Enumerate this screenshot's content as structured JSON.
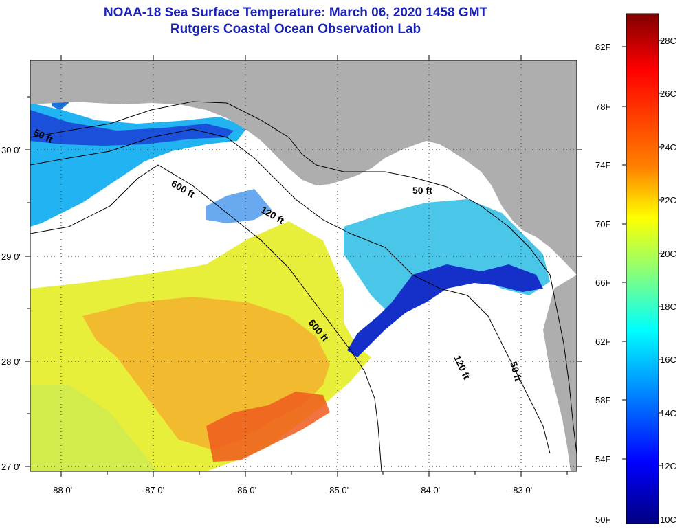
{
  "title": "NOAA-18 Sea Surface Temperature:  March 06, 2020 1458 GMT",
  "subtitle": "Rutgers Coastal Ocean Observation Lab",
  "map": {
    "lon_labels": [
      "-88 0'",
      "-87 0'",
      "-86 0'",
      "-85 0'",
      "-84 0'",
      "-83 0'"
    ],
    "lat_labels": [
      "30 0'",
      "29 0'",
      "28 0'",
      "27 0'"
    ],
    "contour_labels": {
      "c50_west": "50 ft",
      "c600_north": "600 ft",
      "c120_north": "120 ft",
      "c50_east": "50 ft",
      "c600_south": "600 ft",
      "c120_south": "120 ft",
      "c50_south": "50 ft"
    },
    "land_color": "#aeaeae",
    "cloud_color": "#ffffff"
  },
  "colorbar": {
    "fahrenheit_labels": [
      "82F",
      "78F",
      "74F",
      "70F",
      "66F",
      "62F",
      "58F",
      "54F",
      "50F"
    ],
    "celsius_labels": [
      "28C",
      "26C",
      "24C",
      "22C",
      "20C",
      "18C",
      "16C",
      "14C",
      "12C",
      "10C"
    ],
    "colors_top_to_bottom": [
      "#800000",
      "#ff0000",
      "#ff8000",
      "#ffff00",
      "#80ff80",
      "#00ffff",
      "#0080ff",
      "#0000ff",
      "#000080"
    ]
  }
}
